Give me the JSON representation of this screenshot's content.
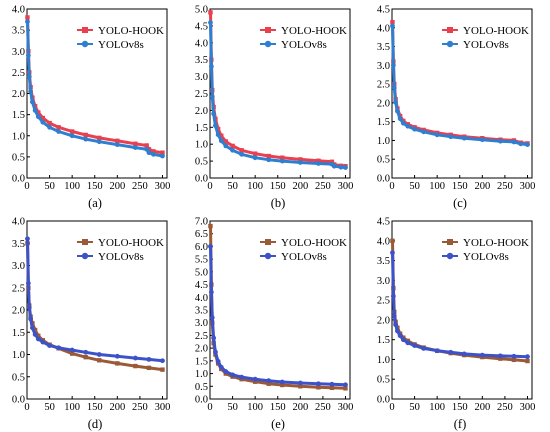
{
  "chart_data": [
    {
      "type": "line",
      "label": "(a)",
      "xlim": [
        0,
        310
      ],
      "ylim": [
        0,
        4.0
      ],
      "xticks": [
        0,
        50,
        100,
        150,
        200,
        250,
        300
      ],
      "yticks": [
        0.0,
        0.5,
        1.0,
        1.5,
        2.0,
        2.5,
        3.0,
        3.5,
        4.0
      ],
      "ytick_labels": [
        "0.0",
        "0.5",
        "1.0",
        "1.5",
        "2.0",
        "2.5",
        "3.0",
        "3.5",
        "4.0"
      ],
      "legend": "top-right",
      "series": [
        {
          "name": "YOLO-HOOK",
          "color": "#e8404f",
          "marker": "square",
          "x": [
            1,
            3,
            5,
            8,
            12,
            18,
            25,
            35,
            50,
            70,
            100,
            130,
            160,
            200,
            240,
            265,
            270,
            280,
            300
          ],
          "y": [
            3.8,
            3.0,
            2.5,
            2.15,
            1.9,
            1.7,
            1.55,
            1.42,
            1.3,
            1.2,
            1.1,
            1.02,
            0.95,
            0.88,
            0.81,
            0.77,
            0.68,
            0.63,
            0.6
          ]
        },
        {
          "name": "YOLOv8s",
          "color": "#2f7fd0",
          "marker": "circle",
          "x": [
            1,
            3,
            5,
            8,
            12,
            18,
            25,
            35,
            50,
            70,
            100,
            130,
            160,
            200,
            240,
            265,
            270,
            280,
            300
          ],
          "y": [
            3.7,
            2.9,
            2.4,
            2.05,
            1.8,
            1.6,
            1.45,
            1.32,
            1.2,
            1.1,
            1.0,
            0.92,
            0.86,
            0.79,
            0.72,
            0.68,
            0.6,
            0.56,
            0.52
          ]
        }
      ]
    },
    {
      "type": "line",
      "label": "(b)",
      "xlim": [
        0,
        310
      ],
      "ylim": [
        0,
        5.0
      ],
      "xticks": [
        0,
        50,
        100,
        150,
        200,
        250,
        300
      ],
      "yticks": [
        0.0,
        0.5,
        1.0,
        1.5,
        2.0,
        2.5,
        3.0,
        3.5,
        4.0,
        4.5,
        5.0
      ],
      "ytick_labels": [
        "0.0",
        "0.5",
        "1.0",
        "1.5",
        "2.0",
        "2.5",
        "3.0",
        "3.5",
        "4.0",
        "4.5",
        "5.0"
      ],
      "legend": "top-right",
      "series": [
        {
          "name": "YOLO-HOOK",
          "color": "#e8404f",
          "marker": "square",
          "x": [
            1,
            3,
            5,
            8,
            12,
            18,
            25,
            35,
            50,
            70,
            100,
            130,
            160,
            200,
            240,
            270,
            275,
            290,
            300
          ],
          "y": [
            4.9,
            3.5,
            2.6,
            2.1,
            1.75,
            1.45,
            1.25,
            1.08,
            0.95,
            0.82,
            0.72,
            0.65,
            0.6,
            0.55,
            0.51,
            0.48,
            0.4,
            0.36,
            0.35
          ]
        },
        {
          "name": "YOLOv8s",
          "color": "#2f7fd0",
          "marker": "circle",
          "x": [
            1,
            3,
            5,
            8,
            12,
            18,
            25,
            35,
            50,
            70,
            100,
            130,
            160,
            200,
            240,
            270,
            275,
            290,
            300
          ],
          "y": [
            4.6,
            3.3,
            2.4,
            1.9,
            1.55,
            1.28,
            1.1,
            0.95,
            0.82,
            0.7,
            0.6,
            0.54,
            0.5,
            0.46,
            0.43,
            0.41,
            0.35,
            0.32,
            0.31
          ]
        }
      ]
    },
    {
      "type": "line",
      "label": "(c)",
      "xlim": [
        0,
        310
      ],
      "ylim": [
        0,
        4.5
      ],
      "xticks": [
        0,
        50,
        100,
        150,
        200,
        250,
        300
      ],
      "yticks": [
        0.0,
        0.5,
        1.0,
        1.5,
        2.0,
        2.5,
        3.0,
        3.5,
        4.0,
        4.5
      ],
      "ytick_labels": [
        "0.0",
        "0.5",
        "1.0",
        "1.5",
        "2.0",
        "2.5",
        "3.0",
        "3.5",
        "4.0",
        "4.5"
      ],
      "legend": "top-right",
      "series": [
        {
          "name": "YOLO-HOOK",
          "color": "#e8404f",
          "marker": "square",
          "x": [
            1,
            3,
            5,
            8,
            12,
            18,
            25,
            35,
            50,
            70,
            100,
            130,
            160,
            200,
            240,
            270,
            285,
            300
          ],
          "y": [
            4.15,
            3.1,
            2.5,
            2.1,
            1.85,
            1.65,
            1.52,
            1.43,
            1.35,
            1.28,
            1.2,
            1.15,
            1.1,
            1.06,
            1.02,
            1.0,
            0.94,
            0.92
          ]
        },
        {
          "name": "YOLOv8s",
          "color": "#2f7fd0",
          "marker": "circle",
          "x": [
            1,
            3,
            5,
            8,
            12,
            18,
            25,
            35,
            50,
            70,
            100,
            130,
            160,
            200,
            240,
            270,
            285,
            300
          ],
          "y": [
            4.05,
            3.0,
            2.4,
            2.02,
            1.78,
            1.58,
            1.46,
            1.38,
            1.3,
            1.23,
            1.15,
            1.1,
            1.06,
            1.02,
            0.98,
            0.96,
            0.91,
            0.89
          ]
        }
      ]
    },
    {
      "type": "line",
      "label": "(d)",
      "xlim": [
        0,
        310
      ],
      "ylim": [
        0,
        4.0
      ],
      "xticks": [
        0,
        50,
        100,
        150,
        200,
        250,
        300
      ],
      "yticks": [
        0.0,
        0.5,
        1.0,
        1.5,
        2.0,
        2.5,
        3.0,
        3.5,
        4.0
      ],
      "ytick_labels": [
        "0.0",
        "0.5",
        "1.0",
        "1.5",
        "2.0",
        "2.5",
        "3.0",
        "3.5",
        "4.0"
      ],
      "legend": "top-right",
      "series": [
        {
          "name": "YOLO-HOOK",
          "color": "#9a5a38",
          "marker": "square",
          "x": [
            1,
            3,
            5,
            8,
            12,
            18,
            25,
            35,
            50,
            70,
            100,
            130,
            160,
            200,
            240,
            270,
            300
          ],
          "y": [
            3.5,
            2.5,
            2.1,
            1.85,
            1.7,
            1.55,
            1.42,
            1.32,
            1.22,
            1.14,
            1.02,
            0.94,
            0.87,
            0.8,
            0.74,
            0.7,
            0.66
          ]
        },
        {
          "name": "YOLOv8s",
          "color": "#3d52c8",
          "marker": "circle",
          "x": [
            1,
            3,
            5,
            8,
            12,
            18,
            25,
            35,
            50,
            70,
            100,
            130,
            160,
            200,
            240,
            270,
            300
          ],
          "y": [
            3.6,
            2.6,
            2.05,
            1.8,
            1.6,
            1.45,
            1.35,
            1.28,
            1.2,
            1.15,
            1.1,
            1.05,
            1.0,
            0.96,
            0.92,
            0.89,
            0.86
          ]
        }
      ]
    },
    {
      "type": "line",
      "label": "(e)",
      "xlim": [
        0,
        310
      ],
      "ylim": [
        0,
        7.0
      ],
      "xticks": [
        0,
        50,
        100,
        150,
        200,
        250,
        300
      ],
      "yticks": [
        0.0,
        0.5,
        1.0,
        1.5,
        2.0,
        2.5,
        3.0,
        3.5,
        4.0,
        4.5,
        5.0,
        5.5,
        6.0,
        6.5,
        7.0
      ],
      "ytick_labels": [
        "0.0",
        "0.5",
        "1.0",
        "1.5",
        "2.0",
        "2.5",
        "3.0",
        "3.5",
        "4.0",
        "4.5",
        "5.0",
        "5.5",
        "6.0",
        "6.5",
        "7.0"
      ],
      "legend": "top-right",
      "series": [
        {
          "name": "YOLO-HOOK",
          "color": "#9a5a38",
          "marker": "square",
          "x": [
            1,
            3,
            5,
            8,
            12,
            18,
            25,
            35,
            50,
            70,
            100,
            130,
            160,
            200,
            240,
            270,
            300
          ],
          "y": [
            6.8,
            4.5,
            3.0,
            2.2,
            1.75,
            1.4,
            1.18,
            1.0,
            0.88,
            0.78,
            0.68,
            0.6,
            0.55,
            0.5,
            0.46,
            0.44,
            0.42
          ]
        },
        {
          "name": "YOLOv8s",
          "color": "#3d52c8",
          "marker": "circle",
          "x": [
            1,
            3,
            5,
            8,
            12,
            18,
            25,
            35,
            50,
            70,
            100,
            130,
            160,
            200,
            240,
            270,
            300
          ],
          "y": [
            6.0,
            4.2,
            3.2,
            2.4,
            1.85,
            1.48,
            1.25,
            1.08,
            0.95,
            0.86,
            0.78,
            0.72,
            0.67,
            0.63,
            0.6,
            0.58,
            0.56
          ]
        }
      ]
    },
    {
      "type": "line",
      "label": "(f)",
      "xlim": [
        0,
        310
      ],
      "ylim": [
        0,
        4.5
      ],
      "xticks": [
        0,
        50,
        100,
        150,
        200,
        250,
        300
      ],
      "yticks": [
        0.0,
        0.5,
        1.0,
        1.5,
        2.0,
        2.5,
        3.0,
        3.5,
        4.0,
        4.5
      ],
      "ytick_labels": [
        "0.0",
        "0.5",
        "1.0",
        "1.5",
        "2.0",
        "2.5",
        "3.0",
        "3.5",
        "4.0",
        "4.5"
      ],
      "legend": "top-right",
      "series": [
        {
          "name": "YOLO-HOOK",
          "color": "#9a5a38",
          "marker": "square",
          "x": [
            1,
            3,
            5,
            8,
            12,
            18,
            25,
            35,
            50,
            70,
            100,
            130,
            160,
            200,
            240,
            270,
            300
          ],
          "y": [
            4.0,
            2.8,
            2.2,
            1.95,
            1.8,
            1.65,
            1.55,
            1.47,
            1.38,
            1.3,
            1.22,
            1.16,
            1.11,
            1.06,
            1.02,
            0.99,
            0.96
          ]
        },
        {
          "name": "YOLOv8s",
          "color": "#3d52c8",
          "marker": "circle",
          "x": [
            1,
            3,
            5,
            8,
            12,
            18,
            25,
            35,
            50,
            70,
            100,
            130,
            160,
            200,
            240,
            270,
            300
          ],
          "y": [
            3.7,
            2.6,
            2.1,
            1.88,
            1.72,
            1.6,
            1.5,
            1.42,
            1.35,
            1.28,
            1.22,
            1.18,
            1.14,
            1.11,
            1.09,
            1.08,
            1.07
          ]
        }
      ]
    }
  ]
}
